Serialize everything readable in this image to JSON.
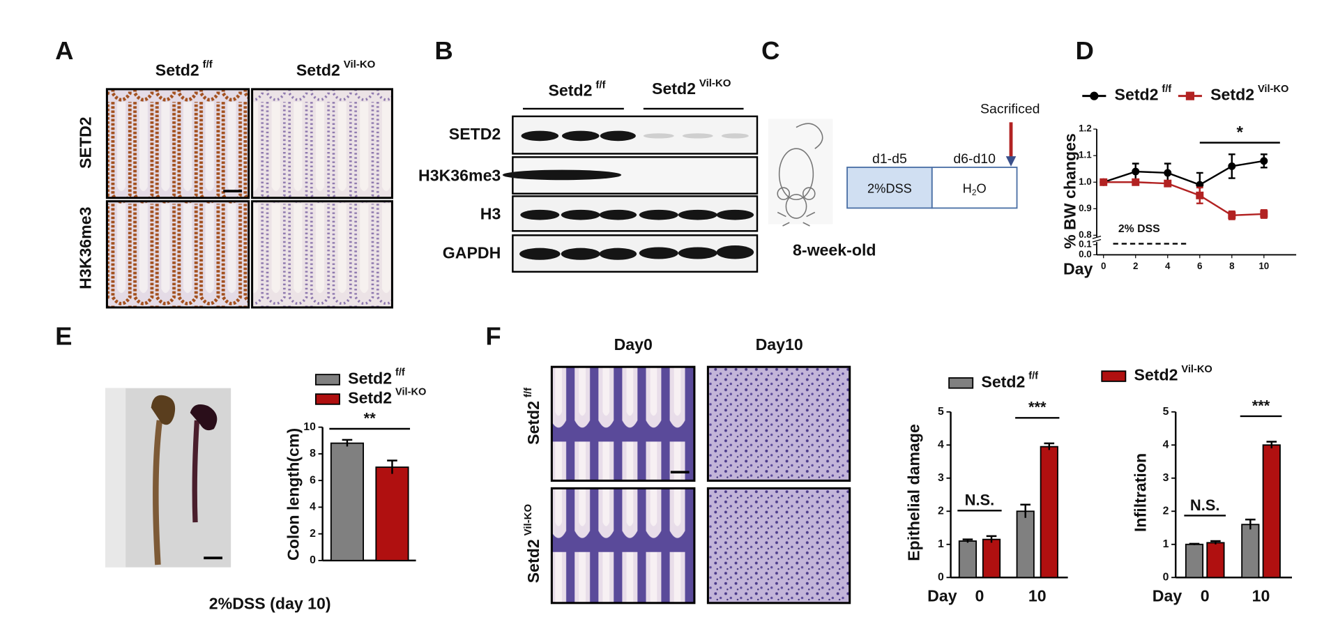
{
  "panels": {
    "A": {
      "letter": "A",
      "columns": [
        {
          "base": "Setd2",
          "sup": "f/f"
        },
        {
          "base": "Setd2",
          "sup": "Vil-KO"
        }
      ],
      "rows": [
        "SETD2",
        "H3K36me3"
      ]
    },
    "B": {
      "letter": "B",
      "columns": [
        {
          "base": "Setd2",
          "sup": "f/f"
        },
        {
          "base": "Setd2",
          "sup": "Vil-KO"
        }
      ],
      "rows": [
        "SETD2",
        "H3K36me3",
        "H3",
        "GAPDH"
      ]
    },
    "C": {
      "letter": "C",
      "sacrificed": "Sacrificed",
      "phases": [
        {
          "days": "d1-d5",
          "treatment": "2%DSS"
        },
        {
          "days": "d6-d10",
          "treatment": {
            "base": "H",
            "sub": "2",
            "rest": "O"
          }
        }
      ],
      "age": "8-week-old"
    },
    "D": {
      "letter": "D"
    },
    "E": {
      "letter": "E",
      "caption": "2%DSS (day 10)"
    },
    "F": {
      "letter": "F",
      "columns": [
        "Day0",
        "Day10"
      ],
      "rows": [
        {
          "base": "Setd2",
          "sup": "f/f"
        },
        {
          "base": "Setd2",
          "sup": "Vil-KO"
        }
      ]
    }
  },
  "chart_data": [
    {
      "type": "line",
      "ylabel": "% BW changes",
      "xlabel": "Day",
      "x": [
        0,
        2,
        4,
        6,
        8,
        10
      ],
      "xlim": [
        0,
        12
      ],
      "xticks": [
        0,
        2,
        4,
        6,
        8,
        10
      ],
      "ylim": [
        0.8,
        1.2
      ],
      "yticks": [
        0.8,
        0.9,
        {
          "value": 1,
          "label": "1.0"
        },
        1.1,
        1.2
      ],
      "ylim_lower": [
        0,
        0.1
      ],
      "yticks_lower": [
        {
          "value": 0,
          "label": "0.0"
        },
        0.1
      ],
      "series": [
        {
          "name": "Setd2",
          "sup": "f/f",
          "color": "#000000",
          "values": [
            1.0,
            1.04,
            1.035,
            0.99,
            1.06,
            1.08
          ],
          "errors": [
            0,
            0.03,
            0.035,
            0.045,
            0.045,
            0.025
          ]
        },
        {
          "name": "Setd2",
          "sup": "Vil-KO",
          "color": "#b22222",
          "values": [
            1.0,
            1.0,
            0.995,
            0.95,
            0.875,
            0.88
          ],
          "errors": [
            0,
            0.01,
            0.01,
            0.03,
            0.015,
            0.015
          ]
        }
      ],
      "annotations": [
        {
          "label": "*",
          "x": [
            6,
            11
          ]
        }
      ],
      "treatment": {
        "label": "2% DSS",
        "x": [
          0.6,
          5.2
        ]
      }
    },
    {
      "type": "bar",
      "ylabel": "Colon length(cm)",
      "ylim": [
        0,
        10
      ],
      "yticks": [
        0,
        2,
        4,
        6,
        8,
        10
      ],
      "series": [
        {
          "name": "Setd2",
          "sup": "f/f",
          "color": "#808080",
          "values": [
            8.8
          ],
          "errors": [
            0.25
          ]
        },
        {
          "name": "Setd2",
          "sup": "Vil-KO",
          "color": "#b01010",
          "values": [
            7.0
          ],
          "errors": [
            0.5
          ]
        }
      ],
      "annotations": [
        {
          "label": "**"
        }
      ]
    },
    {
      "type": "bar",
      "ylabel": "Epithelial damage",
      "xlabel": "Day",
      "categories": [
        "0",
        "10"
      ],
      "ylim": [
        0,
        5
      ],
      "yticks": [
        0,
        1,
        2,
        3,
        4,
        5
      ],
      "series": [
        {
          "name": "Setd2",
          "sup": "f/f",
          "color": "#808080",
          "values": [
            1.1,
            2.0
          ],
          "errors": [
            0.05,
            0.2
          ]
        },
        {
          "name": "Setd2",
          "sup": "Vil-KO",
          "color": "#b01010",
          "values": [
            1.15,
            3.95
          ],
          "errors": [
            0.1,
            0.1
          ]
        }
      ],
      "annotations": [
        {
          "label": "N.S."
        },
        {
          "label": "***"
        }
      ]
    },
    {
      "type": "bar",
      "ylabel": "Infiltration",
      "xlabel": "Day",
      "categories": [
        "0",
        "10"
      ],
      "ylim": [
        0,
        5
      ],
      "yticks": [
        0,
        1,
        2,
        3,
        4,
        5
      ],
      "series": [
        {
          "color": "#808080",
          "values": [
            1.0,
            1.6
          ],
          "errors": [
            0.02,
            0.15
          ]
        },
        {
          "color": "#b01010",
          "values": [
            1.05,
            4.0
          ],
          "errors": [
            0.05,
            0.1
          ]
        }
      ],
      "annotations": [
        {
          "label": "N.S."
        },
        {
          "label": "***"
        }
      ]
    }
  ]
}
